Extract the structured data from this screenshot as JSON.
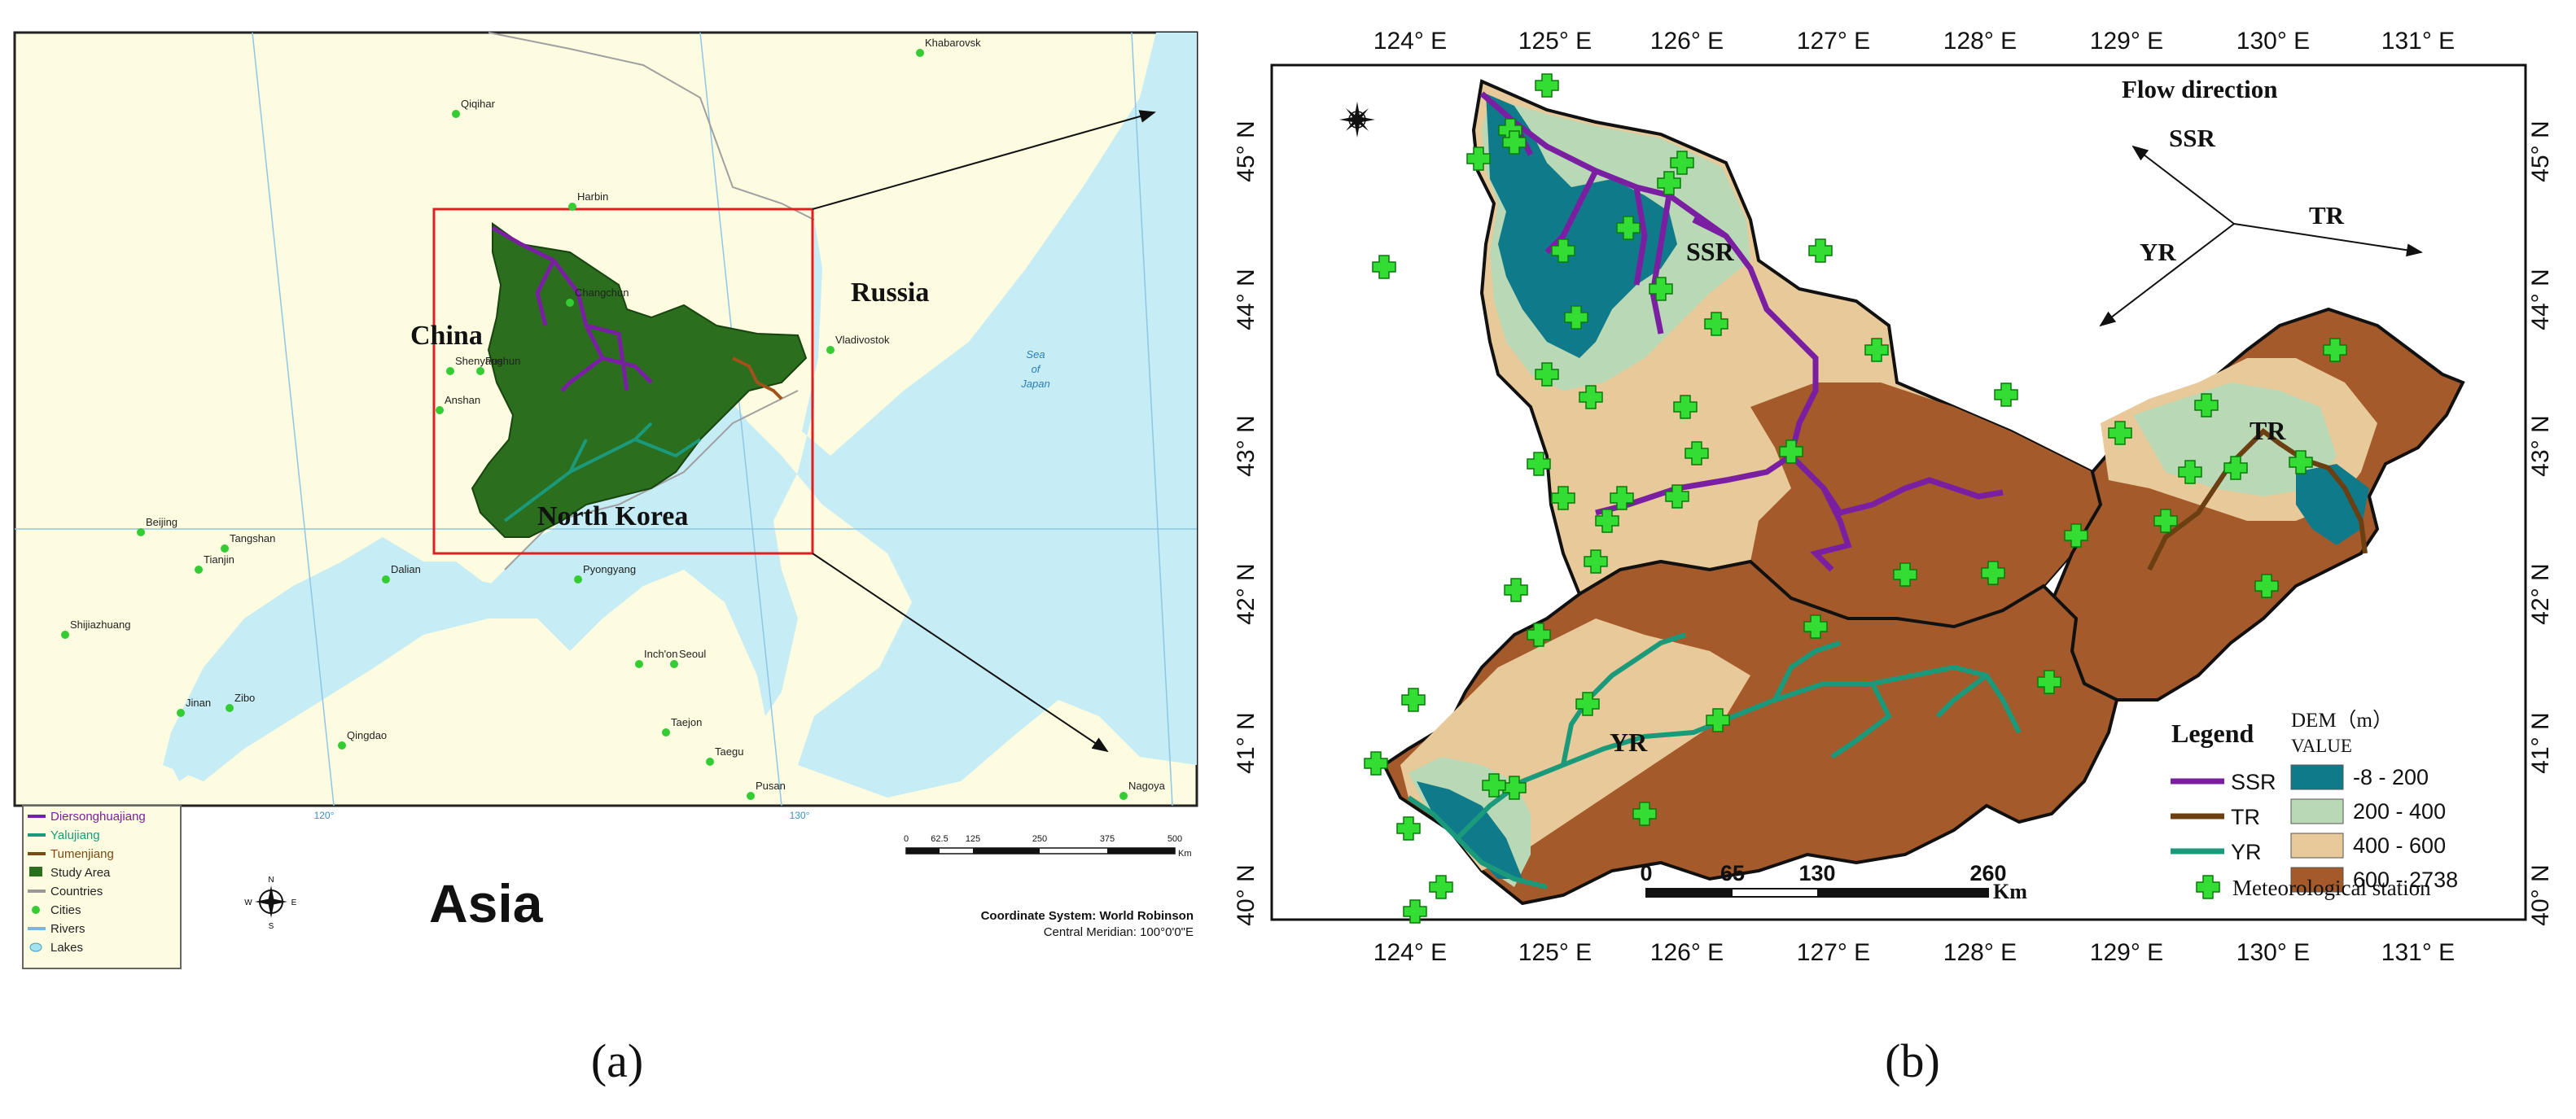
{
  "panel_a": {
    "caption": "(a)",
    "countries": {
      "china": "China",
      "russia": "Russia",
      "north_korea": "North Korea"
    },
    "sea": [
      "Sea",
      "of",
      "Japan"
    ],
    "cities": [
      "Khabarovsk",
      "Qiqihar",
      "Harbin",
      "Changchun",
      "Vladivostok",
      "Shenyang",
      "Fushun",
      "Anshan",
      "Beijing",
      "Tangshan",
      "Tianjin",
      "Dalian",
      "Pyongyang",
      "Shijiazhuang",
      "Inch'on",
      "Seoul",
      "Jinan",
      "Zibo",
      "Qingdao",
      "Taejon",
      "Taegu",
      "Pusan",
      "Nagoya"
    ],
    "grid_labels": [
      "120°",
      "130°"
    ],
    "legend": [
      {
        "label": "Diersonghuajiang",
        "color": "#7b1fa2"
      },
      {
        "label": "Yalujiang",
        "color": "#1a9a7a"
      },
      {
        "label": "Tumenjiang",
        "color": "#7a4a12"
      },
      {
        "label": "Study Area",
        "color": "#2a6e1e"
      },
      {
        "label": "Countries",
        "color": "#999999"
      },
      {
        "label": "Cities",
        "color": "#33cc33"
      },
      {
        "label": "Rivers",
        "color": "#7fb5d9"
      },
      {
        "label": "Lakes",
        "color": "#a6e3f0"
      }
    ],
    "region_title": "Asia",
    "scale_ticks": [
      "0",
      "62.5",
      "125",
      "250",
      "375",
      "500"
    ],
    "scale_unit": "Km",
    "coord_system": "Coordinate System: World Robinson",
    "central_meridian": "Central Meridian: 100°0'0\"E",
    "colors": {
      "land": "#fdfbe0",
      "sea": "#c6ecf5",
      "study_area": "#2a6e1e",
      "city": "#33cc33",
      "frame": "#e02020"
    }
  },
  "panel_b": {
    "caption": "(b)",
    "lon_labels": [
      "124° E",
      "125° E",
      "126° E",
      "127° E",
      "128° E",
      "129° E",
      "130° E",
      "131° E"
    ],
    "lat_labels": [
      "45° N",
      "44° N",
      "43° N",
      "42° N",
      "41° N",
      "40° N"
    ],
    "flow_title": "Flow direction",
    "flow_labels": {
      "ssr": "SSR",
      "tr": "TR",
      "yr": "YR"
    },
    "river_labels": {
      "ssr": "SSR",
      "tr": "TR",
      "yr": "YR"
    },
    "legend_title": "Legend",
    "legend_rivers": [
      {
        "label": "SSR",
        "color": "#7b1fa2"
      },
      {
        "label": "TR",
        "color": "#6b3f12"
      },
      {
        "label": "YR",
        "color": "#1a9a7a"
      }
    ],
    "dem_title": "DEM（m）",
    "dem_value": "VALUE",
    "dem_classes": [
      {
        "label": "-8  -  200",
        "color": "#0f7b8a"
      },
      {
        "label": "200  -  400",
        "color": "#b9d8b5"
      },
      {
        "label": "400  -  600",
        "color": "#e8c999"
      },
      {
        "label": "600  -  2738",
        "color": "#a45a2a"
      }
    ],
    "station_label": "Meteorological station",
    "scale_ticks": [
      "0",
      "65",
      "130",
      "260"
    ],
    "scale_unit": "Km"
  }
}
